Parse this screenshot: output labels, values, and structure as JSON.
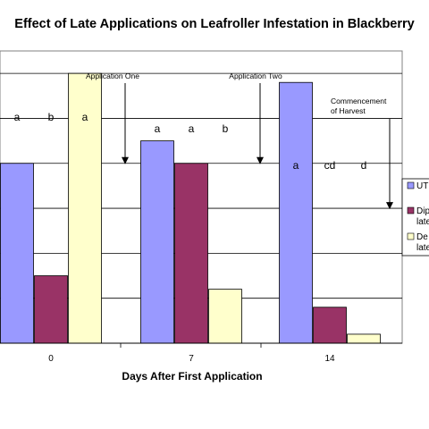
{
  "chart_data": {
    "type": "bar",
    "title": "Effect of Late Applications on Leafroller Infestation in Blackberry",
    "xlabel": "Days After First Application",
    "ylabel": "",
    "categories": [
      "0",
      "7",
      "14"
    ],
    "series": [
      {
        "name": "UT",
        "color": "#9999ff",
        "values": [
          4.0,
          4.5,
          5.8
        ]
      },
      {
        "name": "Dip",
        "sub": "late",
        "color": "#993366",
        "values": [
          1.5,
          4.0,
          0.8
        ]
      },
      {
        "name": "De",
        "sub": "late",
        "color": "#ffffcc",
        "values": [
          6.0,
          1.2,
          0.2
        ]
      }
    ],
    "ylim": [
      0,
      6.5
    ],
    "grid": true,
    "legend_position": "right",
    "significance_letters": [
      [
        "a",
        "b",
        "a"
      ],
      [
        "a",
        "a",
        "b"
      ],
      [
        "a",
        "cd",
        "d"
      ]
    ],
    "annotations": [
      {
        "text": "Application One",
        "lines": [
          "Application One"
        ],
        "x": 1.0,
        "arrow_to": 4.0
      },
      {
        "text": "Application Two",
        "lines": [
          "Application Two"
        ],
        "x": 1.5,
        "arrow_to": 4.0
      },
      {
        "text": "Commencement of Harvest",
        "lines": [
          "Commencement",
          "of Harvest"
        ],
        "x": 2.5,
        "arrow_to": 3.0
      }
    ]
  }
}
